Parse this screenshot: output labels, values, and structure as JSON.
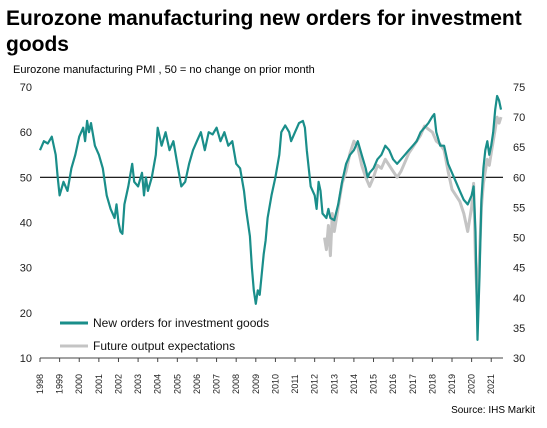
{
  "title": "Eurozone manufacturing new orders for investment goods",
  "subtitle": "Eurozone manufacturing PMI , 50 = no change on prior month",
  "source": "Source: IHS Markit",
  "chart_data": {
    "type": "line",
    "title": "Eurozone manufacturing new orders for investment goods",
    "ylabel": "Eurozone manufacturing PMI , 50 = no change on prior month",
    "ylim": [
      10,
      70
    ],
    "y2lim": [
      30,
      75
    ],
    "yticks": [
      10,
      20,
      30,
      40,
      50,
      60,
      70
    ],
    "y2ticks": [
      30,
      35,
      40,
      45,
      50,
      55,
      60,
      65,
      70,
      75
    ],
    "xlim": [
      1998,
      2021.6
    ],
    "xticks": [
      "1998",
      "1999",
      "2000",
      "2001",
      "2002",
      "2003",
      "2004",
      "2005",
      "2006",
      "2007",
      "2008",
      "2009",
      "2010",
      "2011",
      "2012",
      "2013",
      "2014",
      "2015",
      "2016",
      "2017",
      "2018",
      "2019",
      "2020",
      "2021"
    ],
    "reference_line": 50,
    "grid": false,
    "legend_position": "bottom-left",
    "series": [
      {
        "name": "New orders for investment goods",
        "axis": "left",
        "color": "#1a8e8a",
        "points": [
          [
            1998.0,
            56
          ],
          [
            1998.2,
            58
          ],
          [
            1998.4,
            57.5
          ],
          [
            1998.6,
            59
          ],
          [
            1998.8,
            55
          ],
          [
            1998.9,
            50
          ],
          [
            1999.0,
            46
          ],
          [
            1999.2,
            49
          ],
          [
            1999.4,
            47
          ],
          [
            1999.6,
            52
          ],
          [
            1999.8,
            55
          ],
          [
            2000.0,
            59
          ],
          [
            2000.2,
            61
          ],
          [
            2000.3,
            58
          ],
          [
            2000.4,
            62.5
          ],
          [
            2000.5,
            60
          ],
          [
            2000.6,
            62
          ],
          [
            2000.8,
            57
          ],
          [
            2001.0,
            55
          ],
          [
            2001.2,
            52
          ],
          [
            2001.4,
            46
          ],
          [
            2001.6,
            43
          ],
          [
            2001.8,
            41
          ],
          [
            2001.9,
            44
          ],
          [
            2002.0,
            40
          ],
          [
            2002.1,
            38
          ],
          [
            2002.2,
            37.5
          ],
          [
            2002.3,
            44
          ],
          [
            2002.5,
            48
          ],
          [
            2002.7,
            53
          ],
          [
            2002.8,
            49
          ],
          [
            2003.0,
            48
          ],
          [
            2003.2,
            51
          ],
          [
            2003.3,
            46
          ],
          [
            2003.4,
            50
          ],
          [
            2003.5,
            47
          ],
          [
            2003.7,
            50
          ],
          [
            2003.9,
            55
          ],
          [
            2004.0,
            61
          ],
          [
            2004.2,
            57
          ],
          [
            2004.4,
            60
          ],
          [
            2004.6,
            56
          ],
          [
            2004.8,
            58
          ],
          [
            2005.0,
            53
          ],
          [
            2005.2,
            48
          ],
          [
            2005.4,
            49
          ],
          [
            2005.6,
            53
          ],
          [
            2005.8,
            56
          ],
          [
            2006.0,
            58
          ],
          [
            2006.2,
            60
          ],
          [
            2006.4,
            56
          ],
          [
            2006.6,
            60
          ],
          [
            2006.8,
            59.5
          ],
          [
            2007.0,
            61
          ],
          [
            2007.2,
            58
          ],
          [
            2007.4,
            60
          ],
          [
            2007.6,
            57
          ],
          [
            2007.8,
            58
          ],
          [
            2008.0,
            53
          ],
          [
            2008.2,
            52
          ],
          [
            2008.4,
            47
          ],
          [
            2008.5,
            43
          ],
          [
            2008.7,
            37
          ],
          [
            2008.8,
            30
          ],
          [
            2008.9,
            25
          ],
          [
            2009.0,
            22
          ],
          [
            2009.1,
            25
          ],
          [
            2009.2,
            24
          ],
          [
            2009.4,
            33
          ],
          [
            2009.5,
            36
          ],
          [
            2009.6,
            41
          ],
          [
            2009.8,
            46
          ],
          [
            2010.0,
            50
          ],
          [
            2010.2,
            55
          ],
          [
            2010.3,
            60
          ],
          [
            2010.5,
            61.5
          ],
          [
            2010.7,
            60
          ],
          [
            2010.8,
            58
          ],
          [
            2011.0,
            60
          ],
          [
            2011.2,
            62
          ],
          [
            2011.4,
            62.5
          ],
          [
            2011.5,
            61
          ],
          [
            2011.6,
            56
          ],
          [
            2011.8,
            48
          ],
          [
            2012.0,
            46
          ],
          [
            2012.1,
            43
          ],
          [
            2012.2,
            49
          ],
          [
            2012.3,
            47
          ],
          [
            2012.4,
            42
          ],
          [
            2012.6,
            41
          ],
          [
            2012.7,
            43
          ],
          [
            2012.8,
            41
          ],
          [
            2013.0,
            40.5
          ],
          [
            2013.2,
            44
          ],
          [
            2013.4,
            49
          ],
          [
            2013.6,
            53
          ],
          [
            2013.8,
            55
          ],
          [
            2014.0,
            56
          ],
          [
            2014.2,
            58
          ],
          [
            2014.4,
            55
          ],
          [
            2014.6,
            52
          ],
          [
            2014.7,
            50
          ],
          [
            2014.8,
            51
          ],
          [
            2015.0,
            52
          ],
          [
            2015.2,
            54
          ],
          [
            2015.4,
            55
          ],
          [
            2015.6,
            57
          ],
          [
            2015.8,
            56
          ],
          [
            2016.0,
            54
          ],
          [
            2016.2,
            53
          ],
          [
            2016.4,
            54
          ],
          [
            2016.6,
            55
          ],
          [
            2016.8,
            56
          ],
          [
            2017.0,
            57
          ],
          [
            2017.2,
            58
          ],
          [
            2017.4,
            60
          ],
          [
            2017.6,
            61
          ],
          [
            2017.8,
            62
          ],
          [
            2018.0,
            63.5
          ],
          [
            2018.1,
            64
          ],
          [
            2018.2,
            60
          ],
          [
            2018.4,
            57
          ],
          [
            2018.6,
            57
          ],
          [
            2018.8,
            53
          ],
          [
            2019.0,
            51
          ],
          [
            2019.2,
            49
          ],
          [
            2019.4,
            47
          ],
          [
            2019.6,
            45
          ],
          [
            2019.8,
            44
          ],
          [
            2020.0,
            46
          ],
          [
            2020.1,
            48
          ],
          [
            2020.2,
            38
          ],
          [
            2020.3,
            14
          ],
          [
            2020.4,
            28
          ],
          [
            2020.5,
            45
          ],
          [
            2020.6,
            52
          ],
          [
            2020.7,
            56
          ],
          [
            2020.8,
            58
          ],
          [
            2020.9,
            55
          ],
          [
            2021.0,
            57
          ],
          [
            2021.1,
            60
          ],
          [
            2021.2,
            65
          ],
          [
            2021.3,
            68
          ],
          [
            2021.4,
            67
          ],
          [
            2021.5,
            65
          ]
        ]
      },
      {
        "name": "Future output expectations",
        "axis": "right",
        "color": "#c4c4c4",
        "points": [
          [
            2012.5,
            50
          ],
          [
            2012.6,
            48
          ],
          [
            2012.7,
            52
          ],
          [
            2012.8,
            47
          ],
          [
            2012.9,
            54
          ],
          [
            2013.0,
            51
          ],
          [
            2013.2,
            55
          ],
          [
            2013.4,
            59
          ],
          [
            2013.6,
            61
          ],
          [
            2013.8,
            64
          ],
          [
            2014.0,
            66
          ],
          [
            2014.2,
            65
          ],
          [
            2014.4,
            62
          ],
          [
            2014.6,
            60
          ],
          [
            2014.8,
            58.5
          ],
          [
            2015.0,
            60
          ],
          [
            2015.2,
            62
          ],
          [
            2015.4,
            61.5
          ],
          [
            2015.6,
            63
          ],
          [
            2015.8,
            62
          ],
          [
            2016.0,
            61
          ],
          [
            2016.2,
            60
          ],
          [
            2016.4,
            61
          ],
          [
            2016.6,
            62.5
          ],
          [
            2016.8,
            64
          ],
          [
            2017.0,
            65
          ],
          [
            2017.2,
            66
          ],
          [
            2017.4,
            67
          ],
          [
            2017.6,
            68.5
          ],
          [
            2017.8,
            68
          ],
          [
            2018.0,
            67.5
          ],
          [
            2018.2,
            66
          ],
          [
            2018.4,
            65.5
          ],
          [
            2018.6,
            64.5
          ],
          [
            2018.8,
            61
          ],
          [
            2019.0,
            58
          ],
          [
            2019.2,
            57
          ],
          [
            2019.4,
            56
          ],
          [
            2019.6,
            54
          ],
          [
            2019.8,
            51
          ],
          [
            2020.0,
            55
          ],
          [
            2020.1,
            59
          ],
          [
            2020.2,
            46
          ],
          [
            2020.3,
            38
          ],
          [
            2020.4,
            47
          ],
          [
            2020.5,
            55
          ],
          [
            2020.6,
            59
          ],
          [
            2020.7,
            61
          ],
          [
            2020.8,
            63
          ],
          [
            2020.9,
            62
          ],
          [
            2021.0,
            64
          ],
          [
            2021.1,
            66
          ],
          [
            2021.2,
            68
          ],
          [
            2021.3,
            70
          ],
          [
            2021.4,
            69
          ],
          [
            2021.5,
            70
          ]
        ]
      }
    ]
  }
}
